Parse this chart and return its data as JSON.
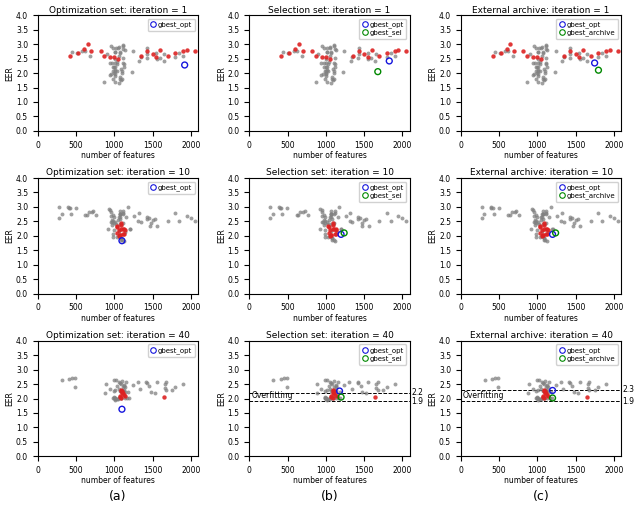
{
  "titles": [
    [
      "Optimization set: iteration = 1",
      "Selection set: iteration = 1",
      "External archive: iteration = 1"
    ],
    [
      "Optimization set: iteration = 10",
      "Selection set: iteration = 10",
      "External archive: iteration = 10"
    ],
    [
      "Optimization set: iteration = 40",
      "Selection set: iteration = 40",
      "External archive: iteration = 40"
    ]
  ],
  "xlabel": "number of features",
  "ylabel": "EER",
  "xlim": [
    0,
    2100
  ],
  "ylim": [
    0,
    4.0
  ],
  "yticks": [
    0.0,
    0.5,
    1.0,
    1.5,
    2.0,
    2.5,
    3.0,
    3.5,
    4.0
  ],
  "xticks": [
    0,
    500,
    1000,
    1500,
    2000
  ],
  "subfig_labels": [
    "(a)",
    "(b)",
    "(c)"
  ],
  "dashed_lines": {
    "row2_col1": {
      "y1": 2.2,
      "y2": 1.9
    },
    "row2_col2": {
      "y1": 2.3,
      "y2": 1.9
    }
  },
  "background_color": "#ffffff"
}
